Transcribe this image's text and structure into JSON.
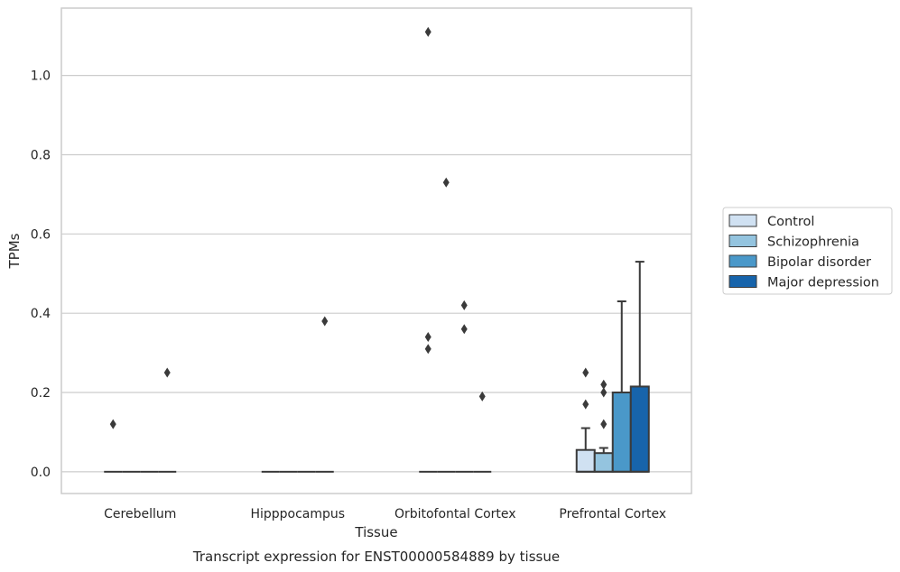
{
  "chart_data": {
    "type": "box",
    "title": "Transcript expression for ENST00000584889 by tissue",
    "xlabel": "Tissue",
    "ylabel": "TPMs",
    "ylim": [
      -0.055,
      1.17
    ],
    "yticks": [
      0.0,
      0.2,
      0.4,
      0.6,
      0.8,
      1.0
    ],
    "ytick_labels": [
      "0.0",
      "0.2",
      "0.4",
      "0.6",
      "0.8",
      "1.0"
    ],
    "grid": "horizontal",
    "legend_position": "right",
    "categories": [
      "Cerebellum",
      "Hipppocampus",
      "Orbitofontal Cortex",
      "Prefrontal Cortex"
    ],
    "series": [
      {
        "name": "Control",
        "color": "#d0e1f2",
        "boxes": [
          {
            "q1": 0,
            "median": 0,
            "q3": 0,
            "whisker_low": 0,
            "whisker_high": 0,
            "outliers": [
              0.12
            ]
          },
          {
            "q1": 0,
            "median": 0,
            "q3": 0,
            "whisker_low": 0,
            "whisker_high": 0,
            "outliers": []
          },
          {
            "q1": 0,
            "median": 0,
            "q3": 0,
            "whisker_low": 0,
            "whisker_high": 0,
            "outliers": [
              0.31,
              0.34,
              1.11
            ]
          },
          {
            "q1": 0,
            "median": 0,
            "q3": 0.055,
            "whisker_low": 0,
            "whisker_high": 0.11,
            "outliers": [
              0.17,
              0.25
            ]
          }
        ]
      },
      {
        "name": "Schizophrenia",
        "color": "#94c4df",
        "boxes": [
          {
            "q1": 0,
            "median": 0,
            "q3": 0,
            "whisker_low": 0,
            "whisker_high": 0,
            "outliers": []
          },
          {
            "q1": 0,
            "median": 0,
            "q3": 0,
            "whisker_low": 0,
            "whisker_high": 0,
            "outliers": []
          },
          {
            "q1": 0,
            "median": 0,
            "q3": 0,
            "whisker_low": 0,
            "whisker_high": 0,
            "outliers": [
              0.73
            ]
          },
          {
            "q1": 0,
            "median": 0,
            "q3": 0.047,
            "whisker_low": 0,
            "whisker_high": 0.06,
            "outliers": [
              0.12,
              0.2,
              0.22
            ]
          }
        ]
      },
      {
        "name": "Bipolar disorder",
        "color": "#4a98c9",
        "boxes": [
          {
            "q1": 0,
            "median": 0,
            "q3": 0,
            "whisker_low": 0,
            "whisker_high": 0,
            "outliers": []
          },
          {
            "q1": 0,
            "median": 0,
            "q3": 0,
            "whisker_low": 0,
            "whisker_high": 0,
            "outliers": []
          },
          {
            "q1": 0,
            "median": 0,
            "q3": 0,
            "whisker_low": 0,
            "whisker_high": 0,
            "outliers": [
              0.36,
              0.42
            ]
          },
          {
            "q1": 0,
            "median": 0,
            "q3": 0.2,
            "whisker_low": 0,
            "whisker_high": 0.43,
            "outliers": []
          }
        ]
      },
      {
        "name": "Major depression",
        "color": "#1764ab",
        "boxes": [
          {
            "q1": 0,
            "median": 0,
            "q3": 0,
            "whisker_low": 0,
            "whisker_high": 0,
            "outliers": [
              0.25
            ]
          },
          {
            "q1": 0,
            "median": 0,
            "q3": 0,
            "whisker_low": 0,
            "whisker_high": 0,
            "outliers": [
              0.38
            ]
          },
          {
            "q1": 0,
            "median": 0,
            "q3": 0,
            "whisker_low": 0,
            "whisker_high": 0,
            "outliers": [
              0.19
            ]
          },
          {
            "q1": 0,
            "median": 0,
            "q3": 0.215,
            "whisker_low": 0,
            "whisker_high": 0.53,
            "outliers": []
          }
        ]
      }
    ]
  }
}
